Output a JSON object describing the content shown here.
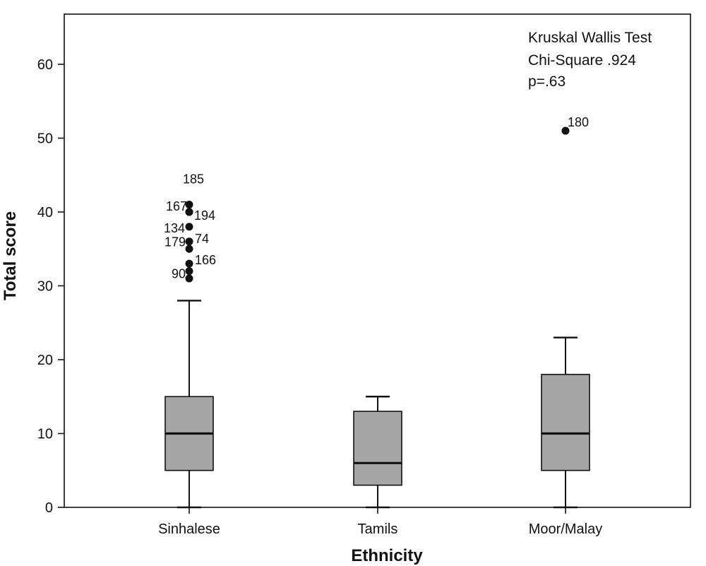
{
  "chart_data": {
    "type": "box",
    "xlabel": "Ethnicity",
    "ylabel": "Total score",
    "ylim": [
      0,
      65
    ],
    "yticks": [
      0,
      10,
      20,
      30,
      40,
      50,
      60
    ],
    "categories": [
      "Sinhalese",
      "Tamils",
      "Moor/Malay"
    ],
    "boxes": [
      {
        "category": "Sinhalese",
        "min": 0,
        "q1": 5,
        "median": 10,
        "q3": 15,
        "max": 28
      },
      {
        "category": "Tamils",
        "min": 0,
        "q1": 3,
        "median": 6,
        "q3": 13,
        "max": 15
      },
      {
        "category": "Moor/Malay",
        "min": 0,
        "q1": 5,
        "median": 10,
        "q3": 18,
        "max": 23
      }
    ],
    "outliers": [
      {
        "category": "Sinhalese",
        "value": 41,
        "label": "185"
      },
      {
        "category": "Sinhalese",
        "value": 40,
        "label": "167"
      },
      {
        "category": "Sinhalese",
        "value": 40,
        "label": "194"
      },
      {
        "category": "Sinhalese",
        "value": 38,
        "label": "134"
      },
      {
        "category": "Sinhalese",
        "value": 36,
        "label": "74"
      },
      {
        "category": "Sinhalese",
        "value": 35,
        "label": "179"
      },
      {
        "category": "Sinhalese",
        "value": 33,
        "label": "166"
      },
      {
        "category": "Sinhalese",
        "value": 32,
        "label": "90"
      },
      {
        "category": "Sinhalese",
        "value": 31,
        "label": ""
      },
      {
        "category": "Moor/Malay",
        "value": 51,
        "label": "180"
      }
    ],
    "annotation": {
      "line1": "Kruskal Wallis Test",
      "line2": "Chi-Square .924",
      "line3": "p=.63"
    },
    "colors": {
      "box_fill": "#a6a6a6",
      "line": "#111111"
    },
    "grid": false,
    "legend": "none"
  }
}
